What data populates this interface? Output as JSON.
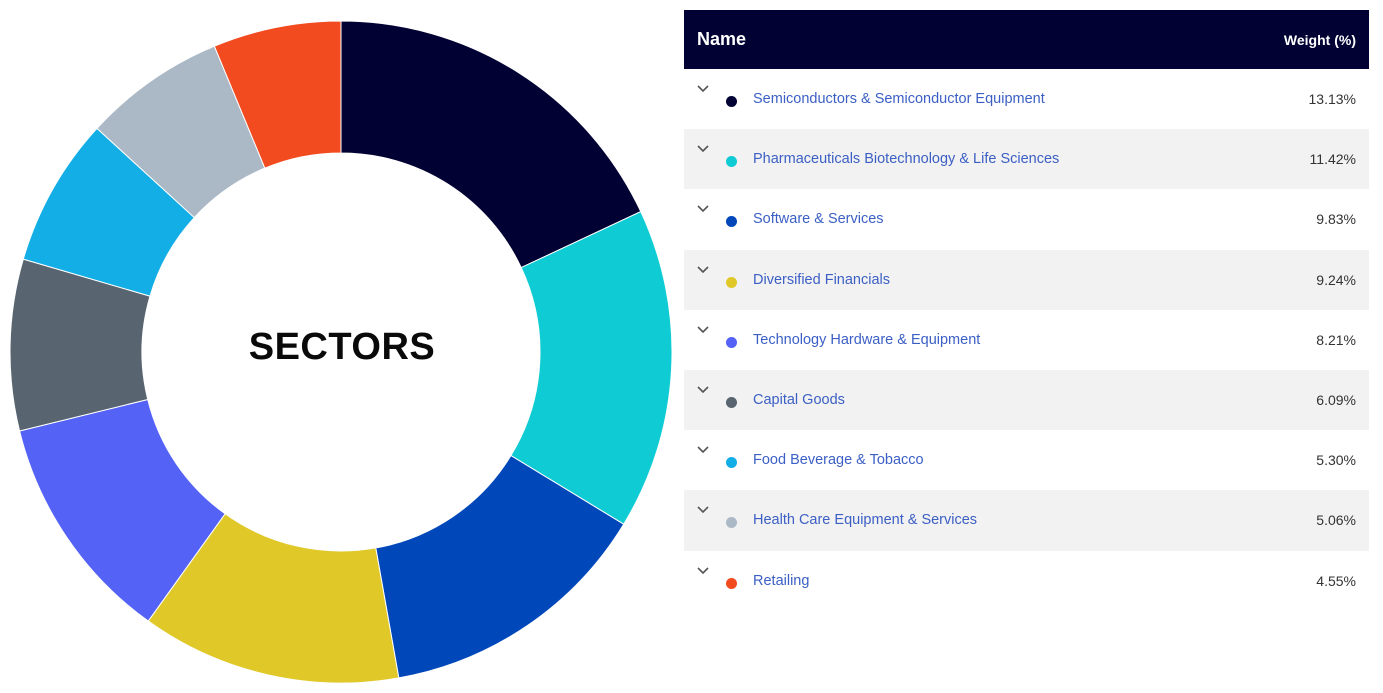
{
  "chart_data": {
    "type": "pie",
    "center_label": "SECTORS",
    "header": {
      "name": "Name",
      "weight": "Weight (%)"
    },
    "slices": [
      {
        "label": "Semiconductors & Semiconductor Equipment",
        "value": 13.13,
        "value_text": "13.13%",
        "color": "#010133"
      },
      {
        "label": "Pharmaceuticals Biotechnology & Life Sciences",
        "value": 11.42,
        "value_text": "11.42%",
        "color": "#0ecbd4"
      },
      {
        "label": "Software & Services",
        "value": 9.83,
        "value_text": "9.83%",
        "color": "#0047ba"
      },
      {
        "label": "Diversified Financials",
        "value": 9.24,
        "value_text": "9.24%",
        "color": "#dfc828"
      },
      {
        "label": "Technology Hardware & Equipment",
        "value": 8.21,
        "value_text": "8.21%",
        "color": "#5462f5"
      },
      {
        "label": "Capital Goods",
        "value": 6.09,
        "value_text": "6.09%",
        "color": "#586570"
      },
      {
        "label": "Food Beverage & Tobacco",
        "value": 5.3,
        "value_text": "5.30%",
        "color": "#13aee6"
      },
      {
        "label": "Health Care Equipment & Services",
        "value": 5.06,
        "value_text": "5.06%",
        "color": "#abb9c6"
      },
      {
        "label": "Retailing",
        "value": 4.55,
        "value_text": "4.55%",
        "color": "#f24b1f"
      }
    ]
  }
}
